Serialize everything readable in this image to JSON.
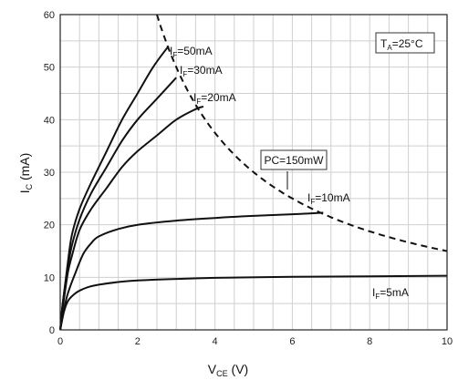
{
  "chart_data": {
    "type": "line",
    "xlabel": {
      "main": "V",
      "sub": "CE",
      "unit": " (V)"
    },
    "ylabel": {
      "main": "I",
      "sub": "C",
      "unit": " (mA)"
    },
    "xlim": [
      0,
      10
    ],
    "ylim": [
      0,
      60
    ],
    "xticks": [
      0,
      2,
      4,
      6,
      8,
      10
    ],
    "yticks": [
      0,
      10,
      20,
      30,
      40,
      50,
      60
    ],
    "grid": true,
    "annotation": {
      "main": "T",
      "sub": "A",
      "rest": "=25°C"
    },
    "series": [
      {
        "name": "I_F=50mA",
        "label": {
          "main": "I",
          "sub": "F",
          "rest": "=50mA"
        },
        "x": [
          0,
          0.05,
          0.1,
          0.2,
          0.3,
          0.5,
          0.8,
          1.2,
          1.6,
          2.0,
          2.4,
          2.8
        ],
        "y": [
          0,
          4,
          7,
          13,
          18,
          23,
          28,
          34,
          40,
          45,
          50,
          54
        ]
      },
      {
        "name": "I_F=30mA",
        "label": {
          "main": "I",
          "sub": "F",
          "rest": "=30mA"
        },
        "x": [
          0,
          0.05,
          0.1,
          0.2,
          0.3,
          0.5,
          0.8,
          1.2,
          1.6,
          2.0,
          2.5,
          3.0
        ],
        "y": [
          0,
          4,
          7,
          12,
          16,
          21,
          26,
          31,
          36,
          40,
          44,
          48
        ]
      },
      {
        "name": "I_F=20mA",
        "label": {
          "main": "I",
          "sub": "F",
          "rest": "=20mA"
        },
        "x": [
          0,
          0.05,
          0.1,
          0.2,
          0.3,
          0.5,
          0.8,
          1.2,
          1.6,
          2.0,
          2.5,
          3.0,
          3.5,
          3.7
        ],
        "y": [
          0,
          3.5,
          6,
          11,
          14,
          19,
          23,
          27,
          31,
          34,
          37,
          40,
          42,
          42.5
        ]
      },
      {
        "name": "I_F=10mA",
        "label": {
          "main": "I",
          "sub": "F",
          "rest": "=10mA"
        },
        "x": [
          0,
          0.1,
          0.2,
          0.4,
          0.6,
          0.8,
          1.0,
          1.5,
          2.0,
          3.0,
          4.0,
          5.0,
          6.0,
          6.8
        ],
        "y": [
          0,
          4,
          7,
          11,
          14.5,
          16.5,
          17.8,
          19.2,
          20,
          20.8,
          21.3,
          21.7,
          22,
          22.3
        ]
      },
      {
        "name": "I_F=5mA",
        "label": {
          "main": "I",
          "sub": "F",
          "rest": "=5mA"
        },
        "x": [
          0,
          0.1,
          0.2,
          0.4,
          0.6,
          0.8,
          1.0,
          1.5,
          2.0,
          3.0,
          4.0,
          6.0,
          8.0,
          10.0
        ],
        "y": [
          0,
          3.5,
          5.5,
          7,
          7.8,
          8.3,
          8.6,
          9.1,
          9.4,
          9.7,
          9.9,
          10.1,
          10.2,
          10.3
        ]
      }
    ],
    "pc_curve": {
      "label": "PC=150mW",
      "power_mw": 150,
      "x_start": 2.5,
      "x_end": 10
    }
  }
}
